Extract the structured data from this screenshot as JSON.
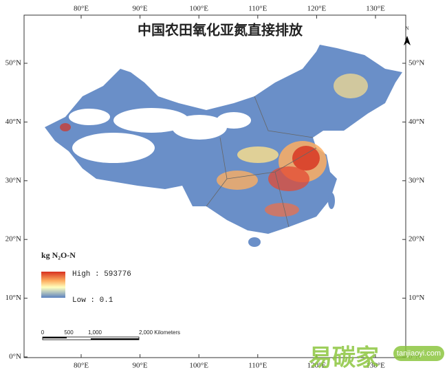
{
  "header": {
    "title": "中国农田氧化亚氮直接排放"
  },
  "graticule": {
    "longitudes": [
      "80°E",
      "90°E",
      "100°E",
      "110°E",
      "120°E",
      "130°E"
    ],
    "latitudes": [
      "50°N",
      "40°N",
      "30°N",
      "20°N",
      "10°N",
      "0°N"
    ]
  },
  "north_arrow": {
    "label": "N"
  },
  "legend": {
    "title": "kg N₂O-N",
    "high": "High : 593776",
    "low": "Low : 0.1"
  },
  "scale_bar": {
    "labels": [
      "0",
      "500",
      "1,000",
      "2,000 Kilometers"
    ]
  },
  "watermark": {
    "brand": "易碳家",
    "site": "tanjiaoyi.com"
  }
}
